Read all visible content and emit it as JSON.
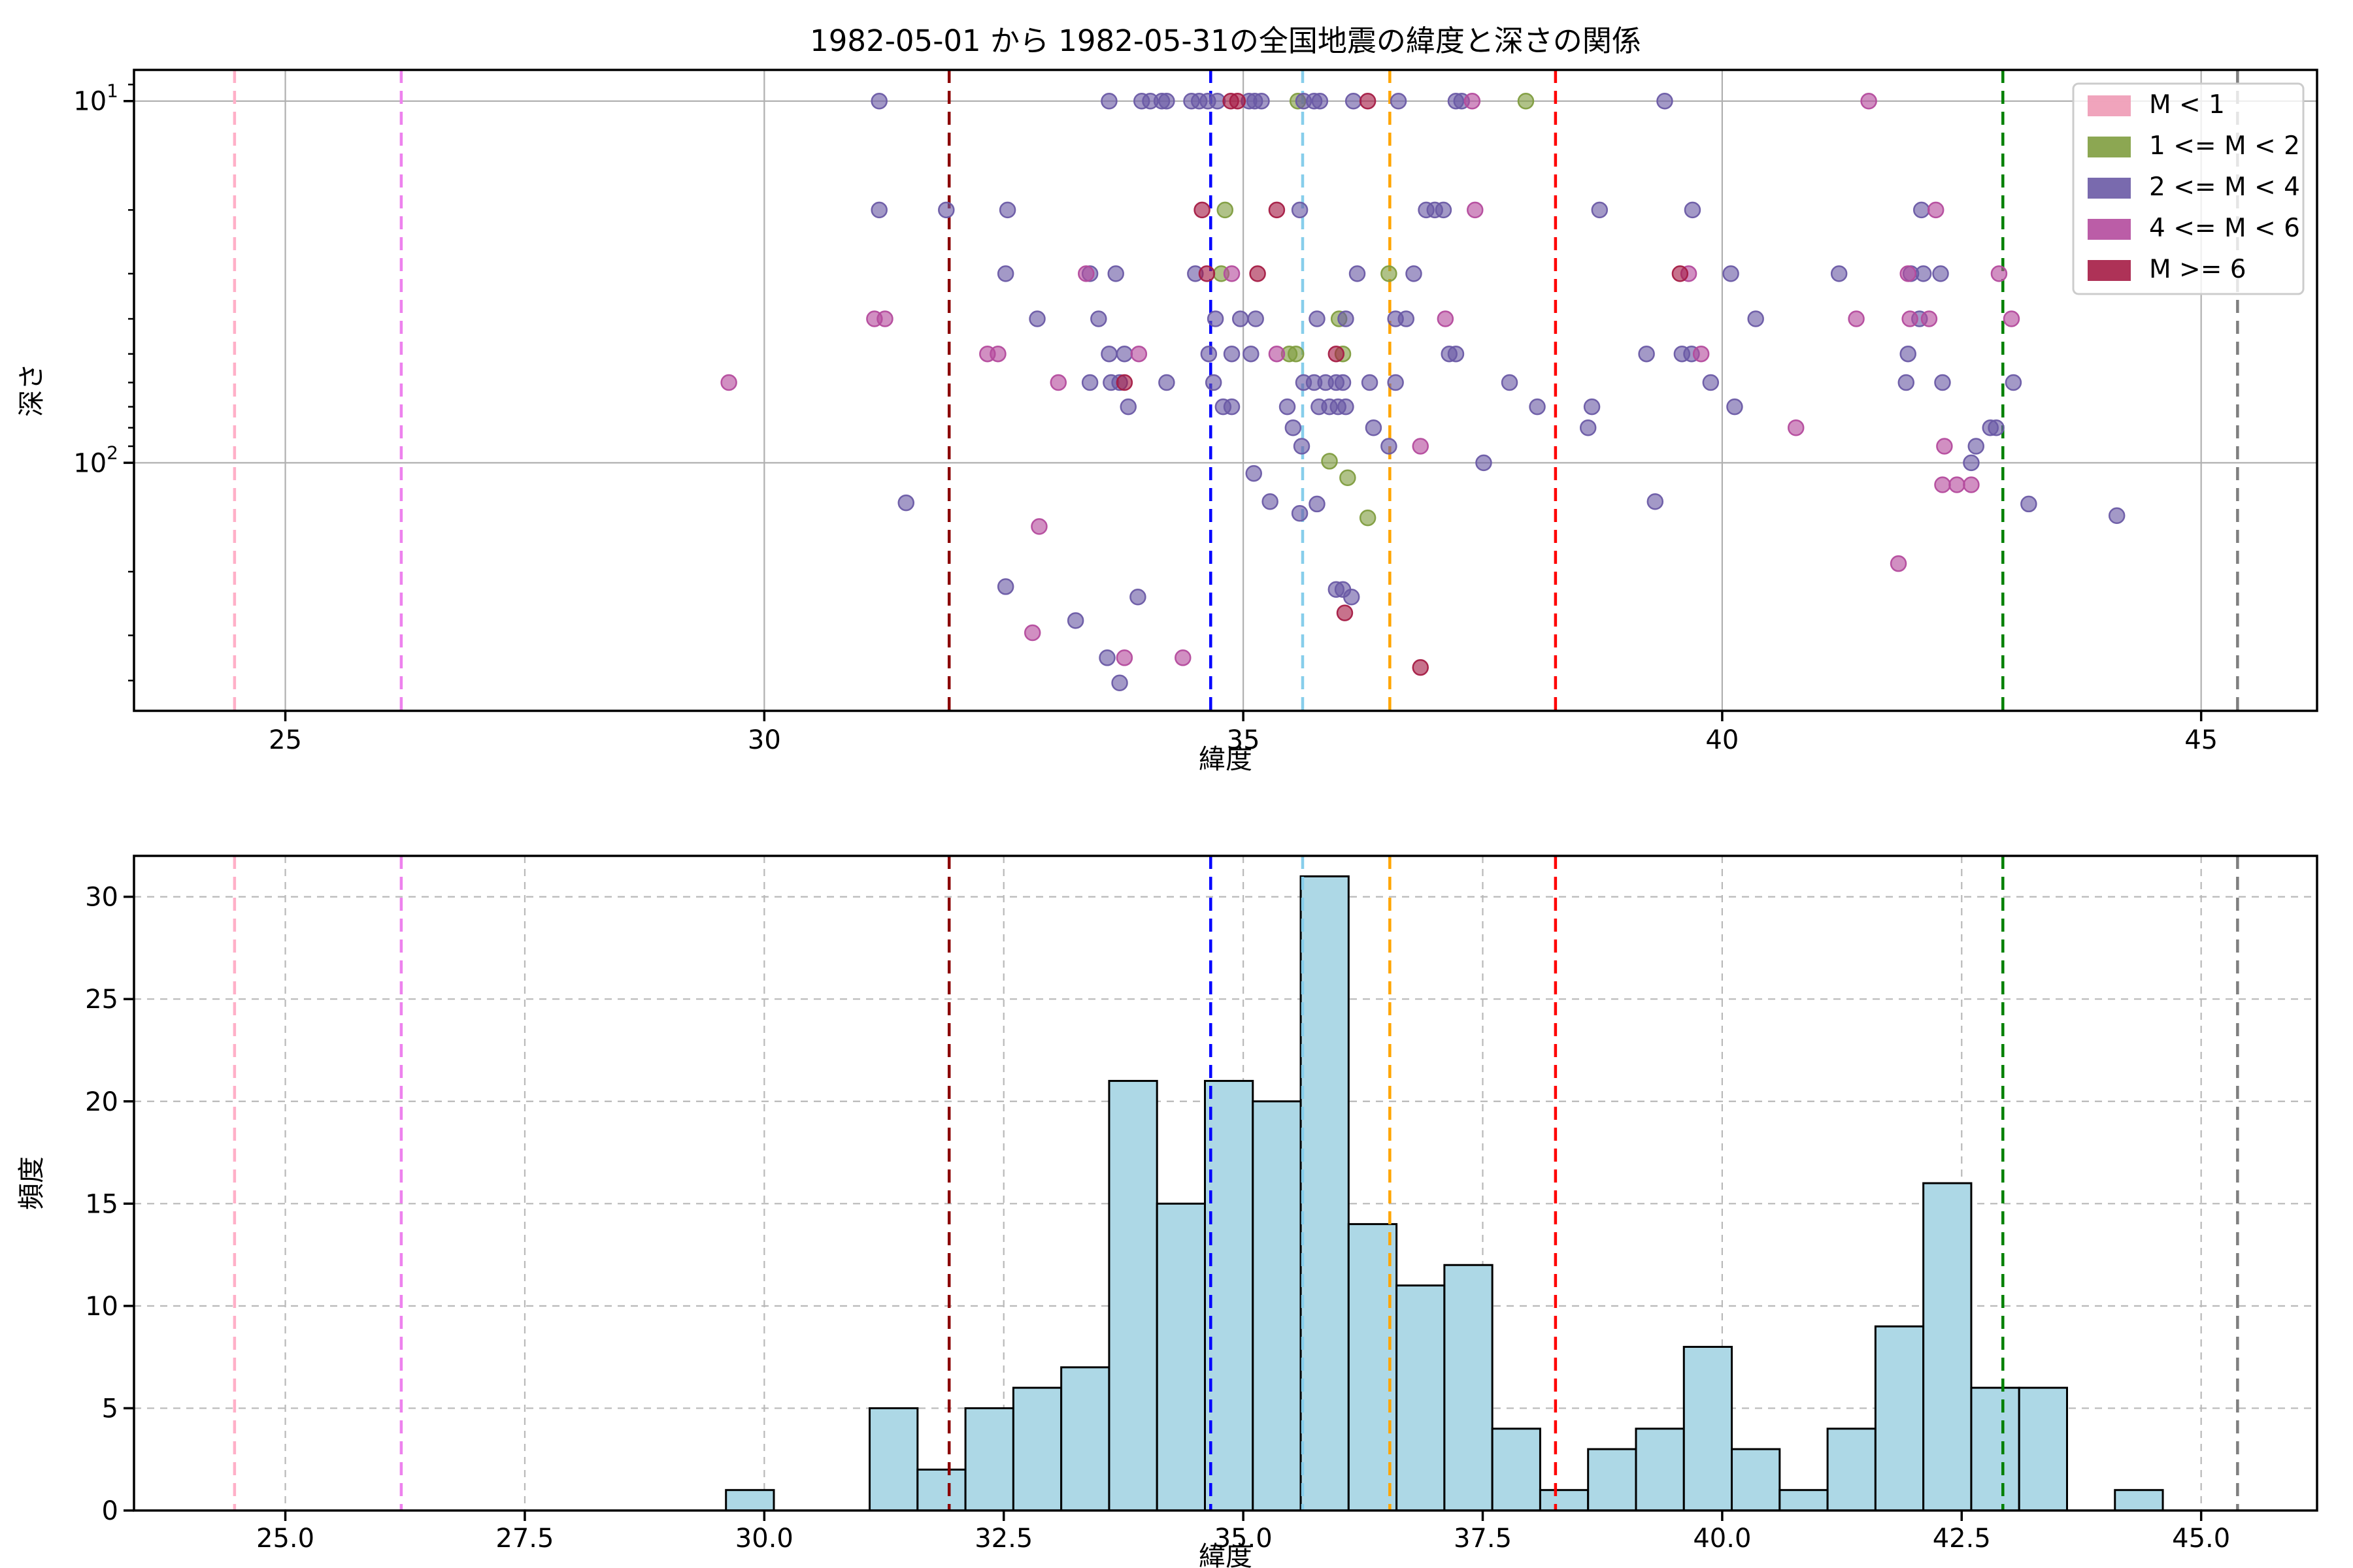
{
  "title": "1982-05-01 から 1982-05-31の全国地震の緯度と深さの関係",
  "chart_data": [
    {
      "type": "scatter",
      "title": "1982-05-01 から 1982-05-31の全国地震の緯度と深さの関係",
      "xlabel": "緯度",
      "ylabel": "深さ",
      "x_axis": {
        "lim": [
          23.42,
          46.21
        ],
        "ticks": [
          25,
          30,
          35,
          40,
          45
        ],
        "tick_labels": [
          "25",
          "30",
          "35",
          "40",
          "45"
        ]
      },
      "y_axis": {
        "scale": "log",
        "inverted": true,
        "lim": [
          8.2,
          485
        ],
        "major_ticks": [
          10,
          100
        ],
        "major_tick_labels": [
          {
            "base": "10",
            "exp": "1"
          },
          {
            "base": "10",
            "exp": "2"
          }
        ],
        "minor_ticks": [
          9,
          20,
          30,
          40,
          50,
          60,
          70,
          80,
          90,
          200,
          300,
          400
        ]
      },
      "grid": {
        "style": "solid",
        "color": "#b0b0b0"
      },
      "legend_position": "upper right",
      "series": [
        {
          "name": "M < 1",
          "color": "#ee9ab5",
          "points": []
        },
        {
          "name": "1 <= M < 2",
          "color": "#7f9d3f",
          "points": [
            [
              35.57,
              10
            ],
            [
              37.95,
              10
            ],
            [
              34.81,
              20
            ],
            [
              34.77,
              30
            ],
            [
              36.52,
              30
            ],
            [
              36.0,
              40
            ],
            [
              35.48,
              50
            ],
            [
              35.55,
              50
            ],
            [
              36.04,
              50
            ],
            [
              35.9,
              99
            ],
            [
              36.09,
              110
            ],
            [
              36.3,
              142
            ]
          ]
        },
        {
          "name": "2 <= M < 4",
          "color": "#6a5aa5",
          "points": [
            [
              31.2,
              10
            ],
            [
              33.6,
              10
            ],
            [
              33.94,
              10
            ],
            [
              34.03,
              10
            ],
            [
              34.15,
              10
            ],
            [
              34.2,
              10
            ],
            [
              34.46,
              10
            ],
            [
              34.54,
              10
            ],
            [
              34.63,
              10
            ],
            [
              34.73,
              10
            ],
            [
              35.06,
              10
            ],
            [
              35.12,
              10
            ],
            [
              35.19,
              10
            ],
            [
              35.63,
              10
            ],
            [
              35.74,
              10
            ],
            [
              35.8,
              10
            ],
            [
              36.15,
              10
            ],
            [
              36.62,
              10
            ],
            [
              37.22,
              10
            ],
            [
              37.28,
              10
            ],
            [
              39.4,
              10
            ],
            [
              31.2,
              20
            ],
            [
              31.9,
              20
            ],
            [
              32.54,
              20
            ],
            [
              35.59,
              20
            ],
            [
              36.91,
              20
            ],
            [
              37.0,
              20
            ],
            [
              37.09,
              20
            ],
            [
              38.72,
              20
            ],
            [
              39.69,
              20
            ],
            [
              42.08,
              20
            ],
            [
              32.52,
              30
            ],
            [
              33.4,
              30
            ],
            [
              33.67,
              30
            ],
            [
              34.5,
              30
            ],
            [
              36.19,
              30
            ],
            [
              36.78,
              30
            ],
            [
              40.09,
              30
            ],
            [
              41.22,
              30
            ],
            [
              41.97,
              30
            ],
            [
              42.1,
              30
            ],
            [
              42.28,
              30
            ],
            [
              32.85,
              40
            ],
            [
              33.49,
              40
            ],
            [
              34.71,
              40
            ],
            [
              34.97,
              40
            ],
            [
              35.13,
              40
            ],
            [
              35.77,
              40
            ],
            [
              36.07,
              40
            ],
            [
              36.59,
              40
            ],
            [
              36.7,
              40
            ],
            [
              40.35,
              40
            ],
            [
              42.06,
              40
            ],
            [
              33.6,
              50
            ],
            [
              33.76,
              50
            ],
            [
              34.64,
              50
            ],
            [
              34.88,
              50
            ],
            [
              35.08,
              50
            ],
            [
              37.15,
              50
            ],
            [
              37.22,
              50
            ],
            [
              39.21,
              50
            ],
            [
              39.58,
              50
            ],
            [
              39.68,
              50
            ],
            [
              41.94,
              50
            ],
            [
              33.4,
              60
            ],
            [
              33.62,
              60
            ],
            [
              33.71,
              60
            ],
            [
              34.2,
              60
            ],
            [
              34.69,
              60
            ],
            [
              35.63,
              60
            ],
            [
              35.74,
              60
            ],
            [
              35.86,
              60
            ],
            [
              35.97,
              60
            ],
            [
              36.04,
              60
            ],
            [
              36.32,
              60
            ],
            [
              36.59,
              60
            ],
            [
              37.78,
              60
            ],
            [
              39.88,
              60
            ],
            [
              41.92,
              60
            ],
            [
              42.3,
              60
            ],
            [
              43.04,
              60
            ],
            [
              33.8,
              70
            ],
            [
              34.79,
              70
            ],
            [
              34.88,
              70
            ],
            [
              35.46,
              70
            ],
            [
              35.79,
              70
            ],
            [
              35.9,
              70
            ],
            [
              35.99,
              70
            ],
            [
              36.07,
              70
            ],
            [
              38.07,
              70
            ],
            [
              38.64,
              70
            ],
            [
              40.13,
              70
            ],
            [
              35.52,
              80
            ],
            [
              36.36,
              80
            ],
            [
              38.6,
              80
            ],
            [
              42.8,
              80
            ],
            [
              42.86,
              80
            ],
            [
              35.61,
              90
            ],
            [
              36.52,
              90
            ],
            [
              42.65,
              90
            ],
            [
              37.51,
              100
            ],
            [
              42.6,
              100
            ],
            [
              35.11,
              107
            ],
            [
              31.48,
              129
            ],
            [
              35.28,
              128
            ],
            [
              35.77,
              130
            ],
            [
              39.3,
              128
            ],
            [
              43.2,
              130
            ],
            [
              35.59,
              138
            ],
            [
              44.12,
              140
            ],
            [
              32.52,
              220
            ],
            [
              35.97,
              224
            ],
            [
              36.04,
              224
            ],
            [
              33.9,
              235
            ],
            [
              36.13,
              235
            ],
            [
              33.25,
              273
            ],
            [
              33.58,
              346
            ],
            [
              33.71,
              406
            ]
          ]
        },
        {
          "name": "4 <= M < 6",
          "color": "#b44b9d",
          "points": [
            [
              37.39,
              10
            ],
            [
              41.53,
              10
            ],
            [
              37.42,
              20
            ],
            [
              42.23,
              20
            ],
            [
              33.36,
              30
            ],
            [
              34.88,
              30
            ],
            [
              39.65,
              30
            ],
            [
              41.94,
              30
            ],
            [
              42.89,
              30
            ],
            [
              31.15,
              40
            ],
            [
              31.26,
              40
            ],
            [
              37.11,
              40
            ],
            [
              41.4,
              40
            ],
            [
              41.96,
              40
            ],
            [
              42.16,
              40
            ],
            [
              43.02,
              40
            ],
            [
              32.33,
              50
            ],
            [
              32.44,
              50
            ],
            [
              33.91,
              50
            ],
            [
              35.35,
              50
            ],
            [
              39.78,
              50
            ],
            [
              29.63,
              60
            ],
            [
              33.07,
              60
            ],
            [
              40.77,
              80
            ],
            [
              36.85,
              90
            ],
            [
              42.32,
              90
            ],
            [
              42.3,
              115
            ],
            [
              42.45,
              115
            ],
            [
              42.6,
              115
            ],
            [
              32.87,
              150
            ],
            [
              41.84,
              190
            ],
            [
              32.8,
              295
            ],
            [
              33.76,
              346
            ],
            [
              34.37,
              346
            ]
          ]
        },
        {
          "name": "M >= 6",
          "color": "#a51c45",
          "points": [
            [
              34.87,
              10
            ],
            [
              34.94,
              10
            ],
            [
              36.3,
              10
            ],
            [
              34.57,
              20
            ],
            [
              35.35,
              20
            ],
            [
              34.62,
              30
            ],
            [
              35.15,
              30
            ],
            [
              39.56,
              30
            ],
            [
              35.97,
              50
            ],
            [
              33.76,
              60
            ],
            [
              36.06,
              260
            ],
            [
              36.85,
              368
            ]
          ]
        }
      ],
      "vlines": [
        {
          "x": 24.47,
          "color": "#ffb0c8"
        },
        {
          "x": 26.21,
          "color": "#ee82ee"
        },
        {
          "x": 31.93,
          "color": "#8b0000"
        },
        {
          "x": 34.66,
          "color": "#0000ff"
        },
        {
          "x": 35.62,
          "color": "#87ceeb"
        },
        {
          "x": 36.53,
          "color": "#ffa500"
        },
        {
          "x": 38.26,
          "color": "#ff0000"
        },
        {
          "x": 42.93,
          "color": "#008000"
        },
        {
          "x": 45.38,
          "color": "#7f7f7f"
        }
      ]
    },
    {
      "type": "bar",
      "xlabel": "緯度",
      "ylabel": "頻度",
      "bin_start": 29.6,
      "bin_width": 0.5,
      "counts": [
        1,
        0,
        0,
        5,
        2,
        5,
        6,
        7,
        21,
        15,
        21,
        20,
        31,
        14,
        11,
        12,
        4,
        1,
        3,
        4,
        8,
        3,
        1,
        4,
        9,
        16,
        6,
        6,
        0,
        1
      ],
      "bar_color": "#add8e6",
      "bar_edge_color": "#000000",
      "x_axis": {
        "lim": [
          23.42,
          46.21
        ],
        "ticks": [
          25.0,
          27.5,
          30.0,
          32.5,
          35.0,
          37.5,
          40.0,
          42.5,
          45.0
        ],
        "tick_labels": [
          "25.0",
          "27.5",
          "30.0",
          "32.5",
          "35.0",
          "37.5",
          "40.0",
          "42.5",
          "45.0"
        ]
      },
      "y_axis": {
        "lim": [
          0,
          32
        ],
        "ticks": [
          0,
          5,
          10,
          15,
          20,
          25,
          30
        ],
        "tick_labels": [
          "0",
          "5",
          "10",
          "15",
          "20",
          "25",
          "30"
        ]
      },
      "grid": {
        "style": "dashed",
        "color": "#b9b9b9"
      },
      "vlines": [
        {
          "x": 24.47,
          "color": "#ffb0c8"
        },
        {
          "x": 26.21,
          "color": "#ee82ee"
        },
        {
          "x": 31.93,
          "color": "#8b0000"
        },
        {
          "x": 34.66,
          "color": "#0000ff"
        },
        {
          "x": 35.62,
          "color": "#87ceeb"
        },
        {
          "x": 36.53,
          "color": "#ffa500"
        },
        {
          "x": 38.26,
          "color": "#ff0000"
        },
        {
          "x": 42.93,
          "color": "#008000"
        },
        {
          "x": 45.38,
          "color": "#7f7f7f"
        }
      ]
    }
  ]
}
